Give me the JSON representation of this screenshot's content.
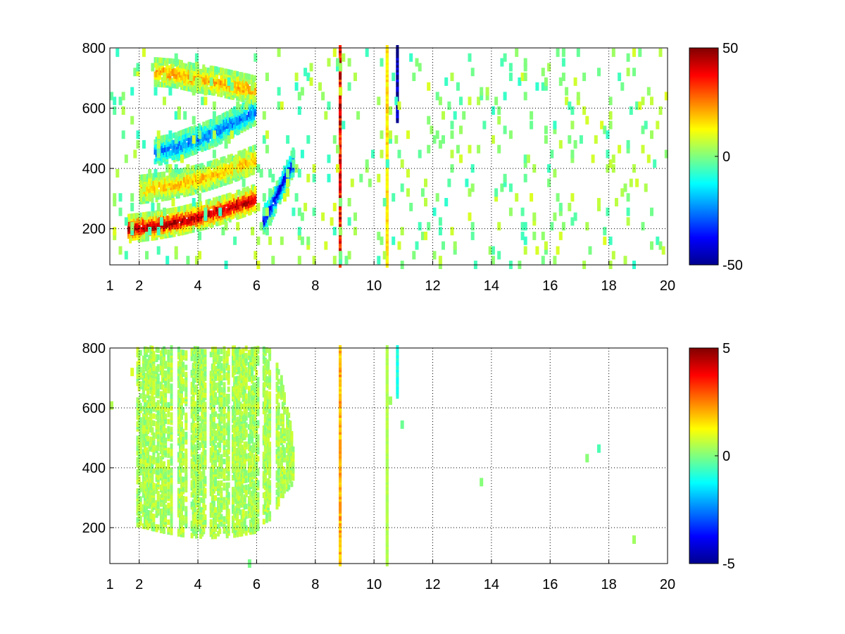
{
  "chart_data": [
    {
      "type": "heatmap",
      "panel": "top",
      "xlim": [
        1,
        20
      ],
      "ylim": [
        80,
        800
      ],
      "x_ticks": [
        1,
        2,
        4,
        6,
        8,
        10,
        12,
        14,
        16,
        18,
        20
      ],
      "x_tick_labels": [
        "1",
        "2",
        "4",
        "6",
        "8",
        "10",
        "12",
        "14",
        "16",
        "18",
        "20"
      ],
      "y_ticks": [
        200,
        400,
        600,
        800
      ],
      "y_tick_labels": [
        "200",
        "400",
        "600",
        "800"
      ],
      "grid": true,
      "colormap": "jet",
      "clim": [
        -50,
        50
      ],
      "colorbar_ticks": [
        50,
        0,
        -50
      ],
      "colorbar_tick_labels": [
        "50",
        "0",
        "-50"
      ],
      "colorbar_position": "right",
      "features": [
        {
          "kind": "ridge",
          "polarity": "positive",
          "x_range": [
            1.6,
            5.9
          ],
          "y": [
            200,
            210,
            225,
            245,
            270,
            300
          ],
          "strength": 45
        },
        {
          "kind": "ridge",
          "polarity": "positive",
          "x_range": [
            2.0,
            5.9
          ],
          "y": [
            330,
            340,
            355,
            375,
            400,
            430
          ],
          "strength": 18
        },
        {
          "kind": "ridge",
          "polarity": "negative",
          "x_range": [
            2.5,
            5.9
          ],
          "y": [
            455,
            470,
            495,
            520,
            555,
            590
          ],
          "strength": -25
        },
        {
          "kind": "ridge",
          "polarity": "positive",
          "x_range": [
            2.5,
            5.9
          ],
          "y": [
            720,
            715,
            700,
            690,
            675,
            660
          ],
          "strength": 20
        },
        {
          "kind": "ridge",
          "polarity": "negative",
          "x_range": [
            6.2,
            7.2
          ],
          "y": [
            230,
            260,
            300,
            340,
            380,
            420
          ],
          "strength": -40
        },
        {
          "kind": "column",
          "x": 8.8,
          "y_range": [
            80,
            800
          ],
          "value": 38
        },
        {
          "kind": "column",
          "x": 10.75,
          "y_range": [
            560,
            800
          ],
          "value": -50
        },
        {
          "kind": "column",
          "x": 10.4,
          "y_range": [
            80,
            800
          ],
          "value": 15
        }
      ]
    },
    {
      "type": "heatmap",
      "panel": "bottom",
      "xlim": [
        1,
        20
      ],
      "ylim": [
        80,
        800
      ],
      "x_ticks": [
        1,
        2,
        4,
        6,
        8,
        10,
        12,
        14,
        16,
        18,
        20
      ],
      "x_tick_labels": [
        "1",
        "2",
        "4",
        "6",
        "8",
        "10",
        "12",
        "14",
        "16",
        "18",
        "20"
      ],
      "y_ticks": [
        200,
        400,
        600,
        800
      ],
      "y_tick_labels": [
        "200",
        "400",
        "600",
        "800"
      ],
      "grid": true,
      "colormap": "jet",
      "clim": [
        -5,
        5
      ],
      "colorbar_ticks": [
        5,
        0,
        -5
      ],
      "colorbar_tick_labels": [
        "5",
        "0",
        "-5"
      ],
      "colorbar_position": "right",
      "features": [
        {
          "kind": "region",
          "x_range": [
            1.9,
            6.0
          ],
          "y_low": [
            210,
            190,
            175,
            170,
            175,
            190
          ],
          "y_high": [
            800,
            800,
            800,
            800,
            800,
            800
          ],
          "value": 0.4
        },
        {
          "kind": "region",
          "x_range": [
            6.2,
            7.2
          ],
          "y_low": [
            220,
            230,
            260,
            300,
            330,
            350
          ],
          "y_high": [
            800,
            790,
            760,
            700,
            600,
            500
          ],
          "value": 0.4
        },
        {
          "kind": "column",
          "x": 8.8,
          "y_range": [
            80,
            800
          ],
          "value": 2
        },
        {
          "kind": "column",
          "x": 10.75,
          "y_range": [
            640,
            800
          ],
          "value": -1
        },
        {
          "kind": "column",
          "x": 10.4,
          "y_range": [
            80,
            800
          ],
          "value": 0.5
        }
      ]
    }
  ]
}
